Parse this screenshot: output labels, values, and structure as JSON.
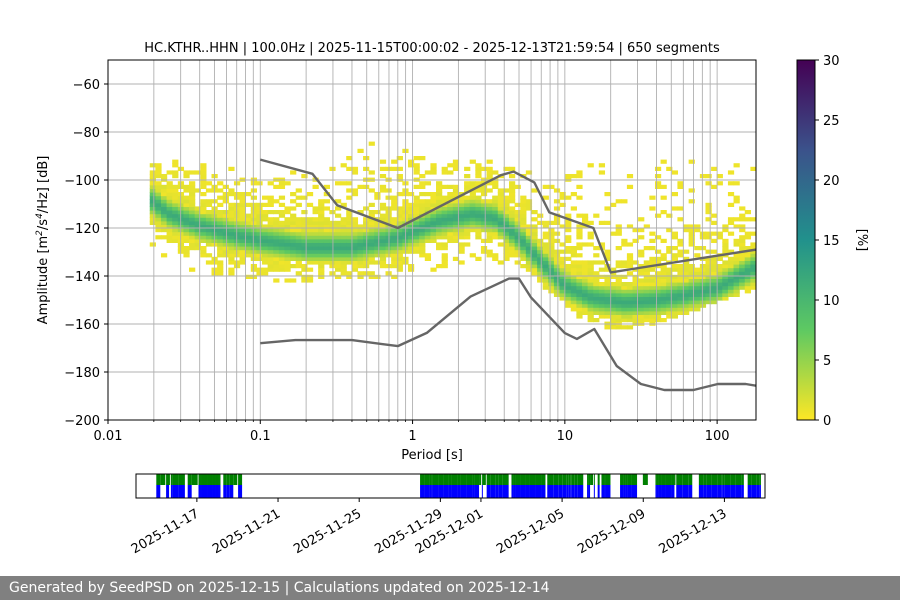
{
  "chart_data": [
    {
      "type": "heatmap",
      "title": "HC.KTHR..HHN | 100.0Hz | 2025-11-15T00:00:02 - 2025-12-13T21:59:54 | 650 segments",
      "xlabel": "Period [s]",
      "ylabel_base": "Amplitude [m",
      "ylabel_exp1": "2",
      "ylabel_mid": "/s",
      "ylabel_exp2": "4",
      "ylabel_end": "/Hz] [dB]",
      "x_scale": "log",
      "xlim": [
        0.01,
        180
      ],
      "ylim": [
        -200,
        -50
      ],
      "xticks": [
        {
          "value": 0.01,
          "label": "0.01"
        },
        {
          "value": 0.1,
          "label": "0.1"
        },
        {
          "value": 1,
          "label": "1"
        },
        {
          "value": 10,
          "label": "10"
        },
        {
          "value": 100,
          "label": "100"
        }
      ],
      "yticks": [
        {
          "value": -200,
          "label": "−200"
        },
        {
          "value": -180,
          "label": "−180"
        },
        {
          "value": -160,
          "label": "−160"
        },
        {
          "value": -140,
          "label": "−140"
        },
        {
          "value": -120,
          "label": "−120"
        },
        {
          "value": -100,
          "label": "−100"
        },
        {
          "value": -80,
          "label": "−80"
        },
        {
          "value": -60,
          "label": "−60"
        }
      ],
      "grid": true,
      "colorbar": {
        "label": "[%]",
        "range": [
          0,
          30
        ],
        "ticks": [
          {
            "value": 0,
            "label": "0"
          },
          {
            "value": 5,
            "label": "5"
          },
          {
            "value": 10,
            "label": "10"
          },
          {
            "value": 15,
            "label": "15"
          },
          {
            "value": 20,
            "label": "20"
          },
          {
            "value": 25,
            "label": "25"
          },
          {
            "value": 30,
            "label": "30"
          }
        ],
        "colormap": "viridis_r",
        "stops": [
          "#fde725",
          "#5ec962",
          "#21918c",
          "#3b528b",
          "#440154"
        ]
      },
      "mode_curve": {
        "period": [
          0.019,
          0.025,
          0.04,
          0.07,
          0.1,
          0.2,
          0.4,
          0.8,
          1.5,
          2.5,
          3.5,
          5,
          7,
          10,
          15,
          25,
          40,
          60,
          100,
          180
        ],
        "db": [
          -108,
          -114,
          -119,
          -123,
          -125,
          -128,
          -128,
          -124,
          -117,
          -114,
          -116,
          -124,
          -134,
          -144,
          -149,
          -151,
          -150,
          -148,
          -145,
          -136
        ]
      },
      "spread_db": {
        "period": [
          0.019,
          0.03,
          0.1,
          0.3,
          0.5,
          1,
          2,
          3,
          5,
          8,
          12,
          20,
          30,
          50,
          100,
          180
        ],
        "low": [
          -126,
          -138,
          -141,
          -142,
          -141,
          -139,
          -136,
          -132,
          -136,
          -146,
          -156,
          -162,
          -161,
          -157,
          -150,
          -145
        ],
        "high": [
          -88,
          -92,
          -98,
          -95,
          -84,
          -88,
          -92,
          -92,
          -96,
          -100,
          -97,
          -90,
          -91,
          -92,
          -94,
          -95
        ]
      },
      "noise_models": [
        {
          "name": "NHNM",
          "color": "#666666",
          "period": [
            0.1,
            0.22,
            0.32,
            0.8,
            3.8,
            4.6,
            6.3,
            7.9,
            15.4,
            20,
            180
          ],
          "db": [
            -91.5,
            -97.4,
            -110.5,
            -120,
            -98,
            -96.5,
            -101,
            -113.5,
            -120,
            -138.5,
            -129
          ]
        },
        {
          "name": "NLNM",
          "color": "#666666",
          "period": [
            0.1,
            0.17,
            0.4,
            0.8,
            1.24,
            2.4,
            4.3,
            5,
            6,
            10,
            12,
            15.6,
            21.9,
            31.6,
            45,
            70,
            101,
            154,
            180
          ],
          "db": [
            -168,
            -166.7,
            -166.7,
            -169.2,
            -163.7,
            -148.6,
            -141.1,
            -141.1,
            -149,
            -163.8,
            -166.2,
            -162.1,
            -177.5,
            -185,
            -187.5,
            -187.5,
            -185,
            -185,
            -185.7
          ]
        }
      ]
    },
    {
      "type": "timeline",
      "date_range": [
        "2025-11-14",
        "2025-12-15"
      ],
      "tick_labels": [
        {
          "date": "2025-11-17",
          "label": "2025-11-17"
        },
        {
          "date": "2025-11-21",
          "label": "2025-11-21"
        },
        {
          "date": "2025-11-25",
          "label": "2025-11-25"
        },
        {
          "date": "2025-11-29",
          "label": "2025-11-29"
        },
        {
          "date": "2025-12-01",
          "label": "2025-12-01"
        },
        {
          "date": "2025-12-05",
          "label": "2025-12-05"
        },
        {
          "date": "2025-12-09",
          "label": "2025-12-09"
        },
        {
          "date": "2025-12-13",
          "label": "2025-12-13"
        }
      ],
      "colors": {
        "used": "#008000",
        "available": "#0000ff"
      },
      "data_periods": [
        {
          "start": "2025-11-15.0",
          "end": "2025-11-19.4"
        },
        {
          "start": "2025-11-28.0",
          "end": "2025-12-14.8"
        }
      ]
    }
  ],
  "footer": "Generated by SeedPSD on 2025-12-15 | Calculations updated on 2025-12-14"
}
